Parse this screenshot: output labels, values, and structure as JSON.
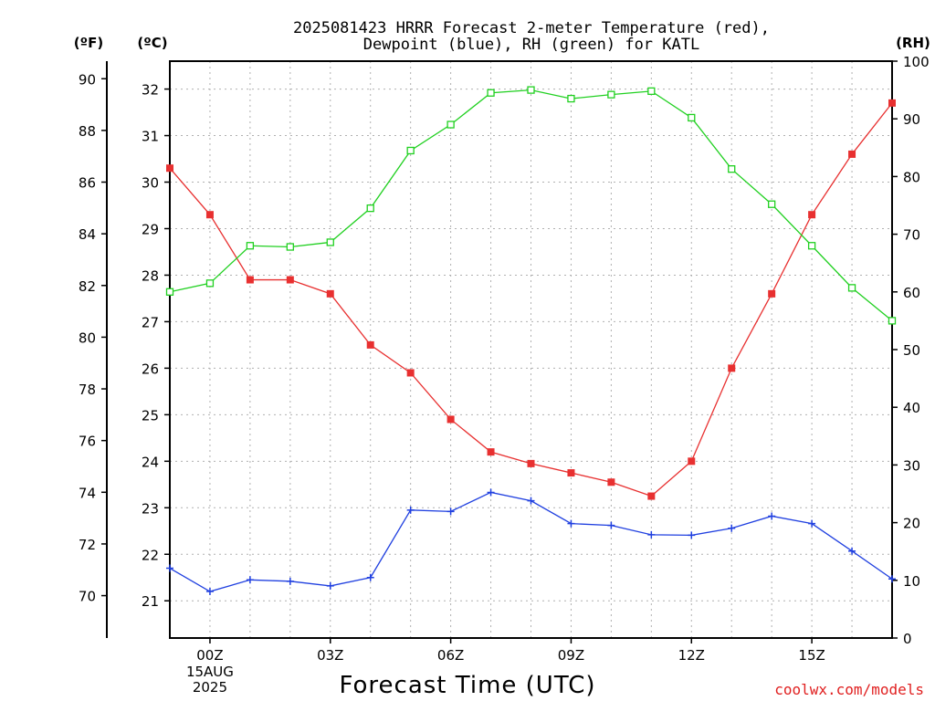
{
  "title_line1": "2025081423 HRRR Forecast 2-meter Temperature (red),",
  "title_line2": "Dewpoint (blue), RH (green) for KATL",
  "units": {
    "fahrenheit": "(ºF)",
    "celsius": "(ºC)",
    "rh": "(RH)"
  },
  "xlabel": "Forecast Time (UTC)",
  "credit": "coolwx.com/models",
  "colors": {
    "temperature": "#e83030",
    "dewpoint": "#2040e0",
    "rh": "#20d020",
    "grid": "#b0b0b0",
    "credit": "#e02020"
  },
  "chart_data": {
    "type": "line",
    "x_hours_from_00Z_15AUG2025": [
      -1,
      0,
      1,
      2,
      3,
      4,
      5,
      6,
      7,
      8,
      9,
      10,
      11,
      12,
      13,
      14,
      15,
      16,
      17
    ],
    "x_tick_hours_from_00Z_15AUG2025": [
      0,
      3,
      6,
      9,
      12,
      15
    ],
    "x_tick_labels": [
      "00Z",
      "03Z",
      "06Z",
      "09Z",
      "12Z",
      "15Z"
    ],
    "x_first_tick_sublabels": [
      "15AUG",
      "2025"
    ],
    "x_range_hours_from_00Z_15AUG2025": [
      -1,
      17
    ],
    "celsius_ticks": [
      21,
      22,
      23,
      24,
      25,
      26,
      27,
      28,
      29,
      30,
      31,
      32
    ],
    "celsius_range": [
      20.2,
      32.6
    ],
    "fahrenheit_ticks": [
      70,
      72,
      74,
      76,
      78,
      80,
      82,
      84,
      86,
      88,
      90
    ],
    "rh_ticks": [
      0,
      10,
      20,
      30,
      40,
      50,
      60,
      70,
      80,
      90,
      100
    ],
    "rh_range": [
      0,
      100
    ],
    "grid": true,
    "series": [
      {
        "name": "Temperature (red)",
        "axis": "celsius",
        "marker": "square-filled",
        "values": [
          30.3,
          29.3,
          27.9,
          27.9,
          27.6,
          26.5,
          25.9,
          24.9,
          24.2,
          23.95,
          23.75,
          23.55,
          23.25,
          24.0,
          26.0,
          27.6,
          29.3,
          30.6,
          31.7
        ]
      },
      {
        "name": "Dewpoint (blue)",
        "axis": "celsius",
        "marker": "plus",
        "values": [
          21.7,
          21.2,
          21.45,
          21.42,
          21.32,
          21.5,
          22.95,
          22.92,
          23.33,
          23.15,
          22.66,
          22.62,
          22.42,
          22.41,
          22.56,
          22.82,
          22.66,
          22.07,
          21.47
        ]
      },
      {
        "name": "RH (green)",
        "axis": "rh",
        "marker": "square-open",
        "values": [
          60,
          61.5,
          68,
          67.8,
          68.6,
          74.5,
          84.5,
          89,
          94.5,
          95,
          93.5,
          94.2,
          94.8,
          90.2,
          81.3,
          75.2,
          68,
          60.7,
          55
        ]
      }
    ]
  }
}
